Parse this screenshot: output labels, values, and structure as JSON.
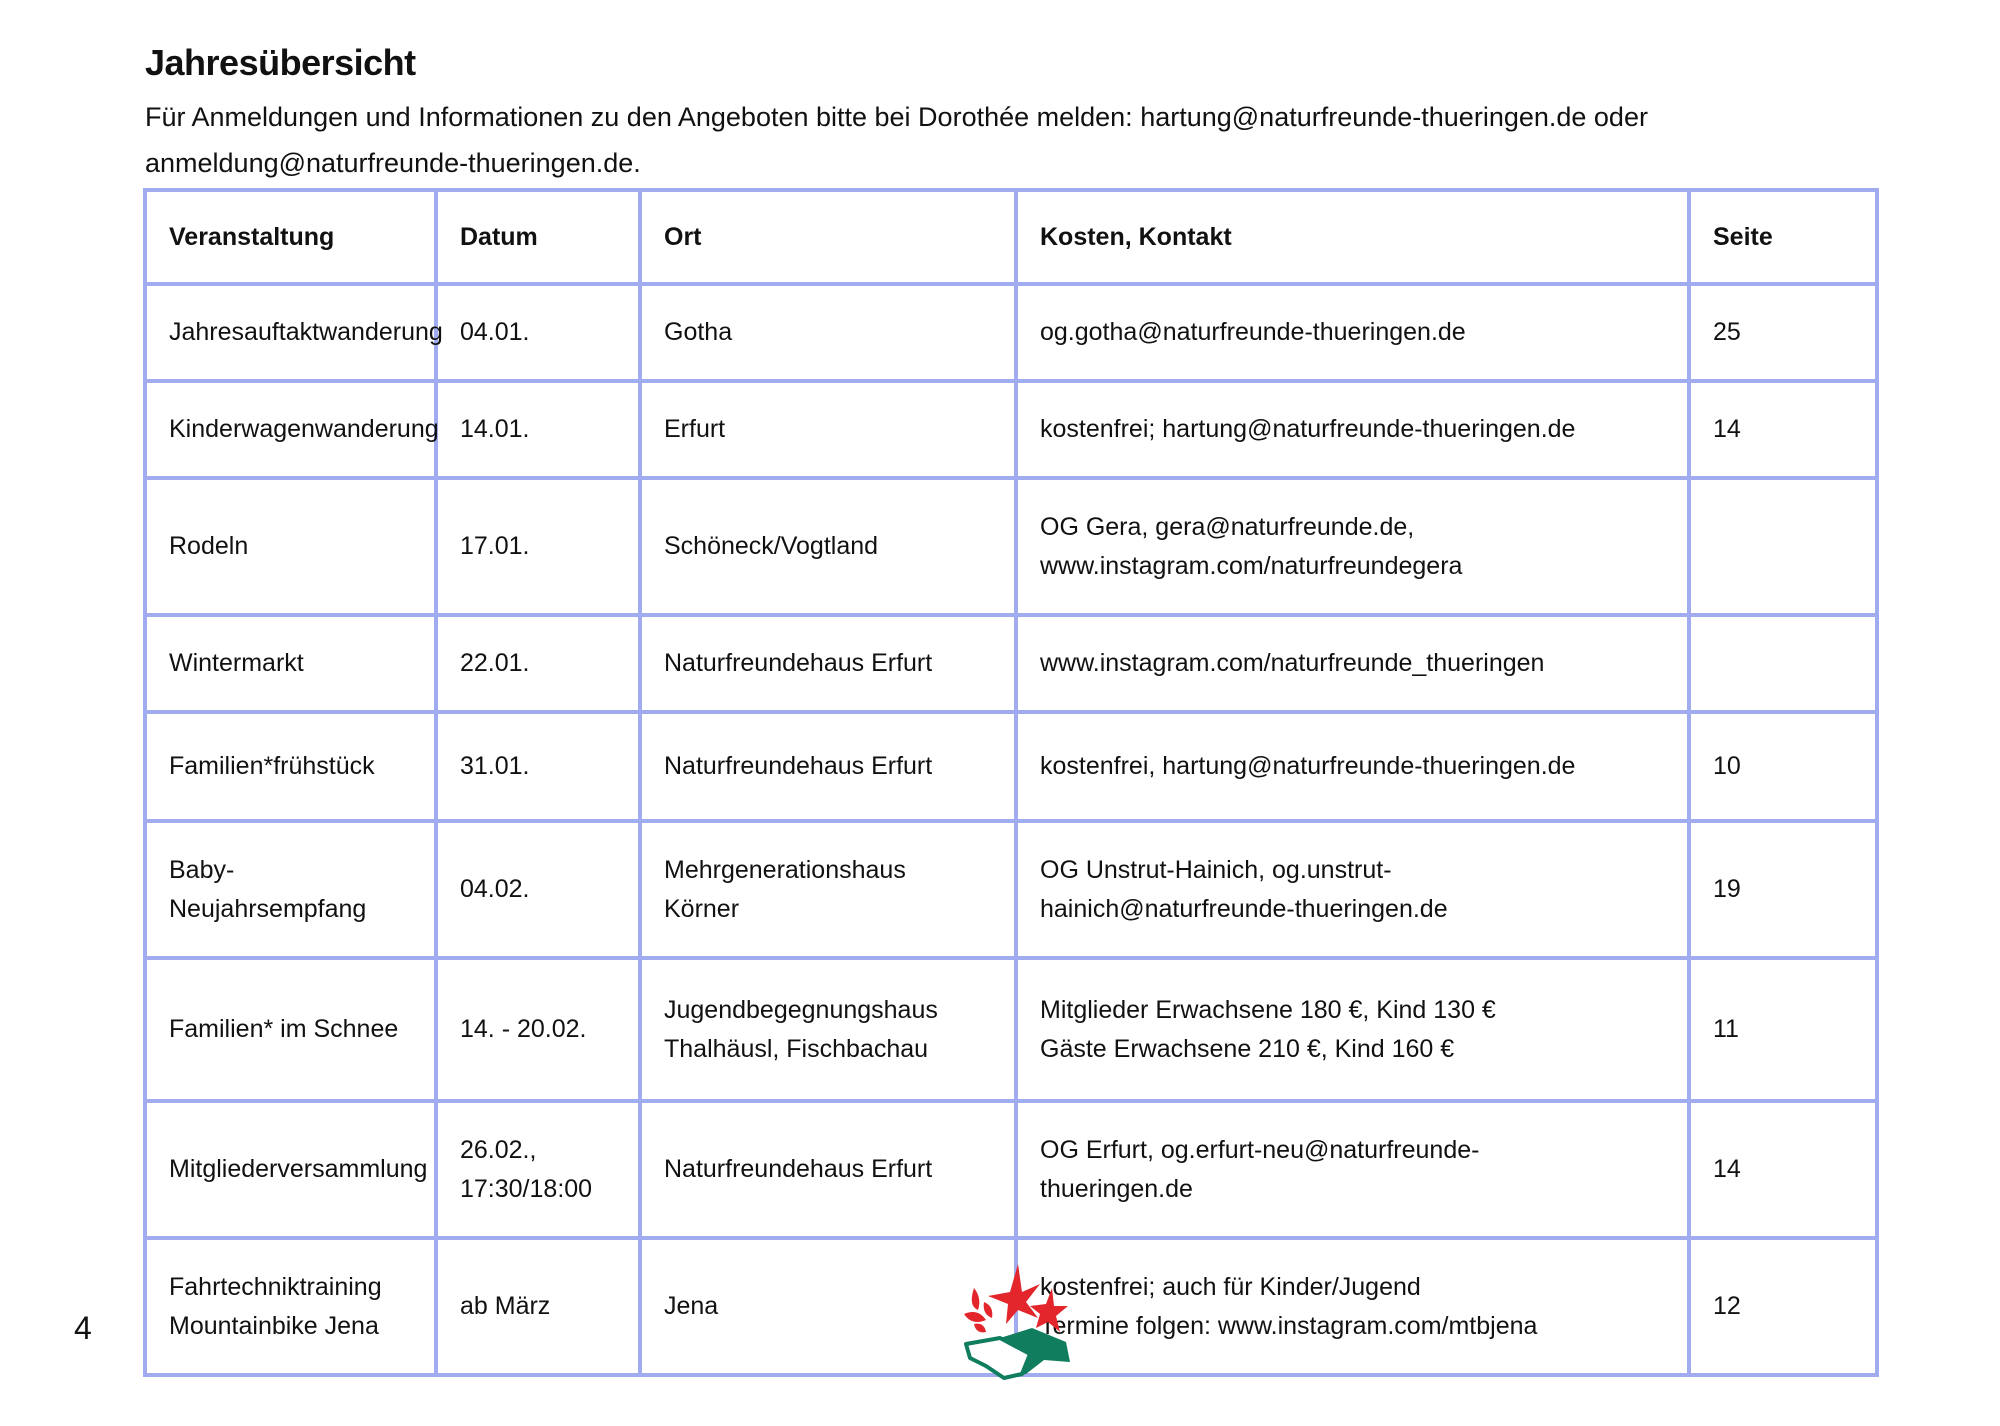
{
  "page": {
    "title": "Jahresübersicht",
    "intro": "Für Anmeldungen und  Informationen zu den Angeboten bitte bei Dorothée melden: hartung@naturfreunde-thueringen.de oder anmeldung@naturfreunde-thueringen.de.",
    "page_number": "4"
  },
  "table": {
    "headers": [
      "Veranstaltung",
      "Datum",
      "Ort",
      "Kosten, Kontakt",
      "Seite"
    ],
    "rows": [
      [
        "Jahresauftaktwanderung",
        "04.01.",
        "Gotha",
        "og.gotha@naturfreunde-thueringen.de",
        "25"
      ],
      [
        "Kinderwagenwanderung",
        "14.01.",
        "Erfurt",
        "kostenfrei; hartung@naturfreunde-thueringen.de",
        "14"
      ],
      [
        "Rodeln",
        "17.01.",
        "Schöneck/Vogtland",
        "OG Gera, gera@naturfreunde.de,\nwww.instagram.com/naturfreundegera",
        ""
      ],
      [
        "Wintermarkt",
        "22.01.",
        "Naturfreundehaus Erfurt",
        "www.instagram.com/naturfreunde_thueringen",
        ""
      ],
      [
        "Familien*frühstück",
        "31.01.",
        "Naturfreundehaus Erfurt",
        "kostenfrei, hartung@naturfreunde-thueringen.de",
        "10"
      ],
      [
        "Baby-Neujahrsempfang",
        "04.02.",
        "Mehrgenerationshaus\nKörner",
        "OG Unstrut-Hainich, og.unstrut-\nhainich@naturfreunde-thueringen.de",
        "19"
      ],
      [
        "Familien* im Schnee",
        "14. - 20.02.",
        "Jugendbegegnungshaus\nThalhäusl, Fischbachau",
        "Mitglieder Erwachsene 180 €, Kind 130 €\nGäste Erwachsene 210 €, Kind 160 €",
        "11"
      ],
      [
        "Mitgliederversammlung",
        "26.02.,\n17:30/18:00",
        "Naturfreundehaus Erfurt",
        "OG Erfurt, og.erfurt-neu@naturfreunde-\nthueringen.de",
        "14"
      ],
      [
        "Fahrtechniktraining\nMountainbike Jena",
        "ab März",
        "Jena",
        "kostenfrei; auch für Kinder/Jugend\nTermine folgen: www.instagram.com/mtbjena",
        "12"
      ]
    ]
  },
  "colors": {
    "border": "#a1abef",
    "logo_red": "#e2262b",
    "logo_green": "#0f7d5e"
  },
  "logo": {
    "icon": "naturfreunde-handshake-flowers-logo"
  }
}
